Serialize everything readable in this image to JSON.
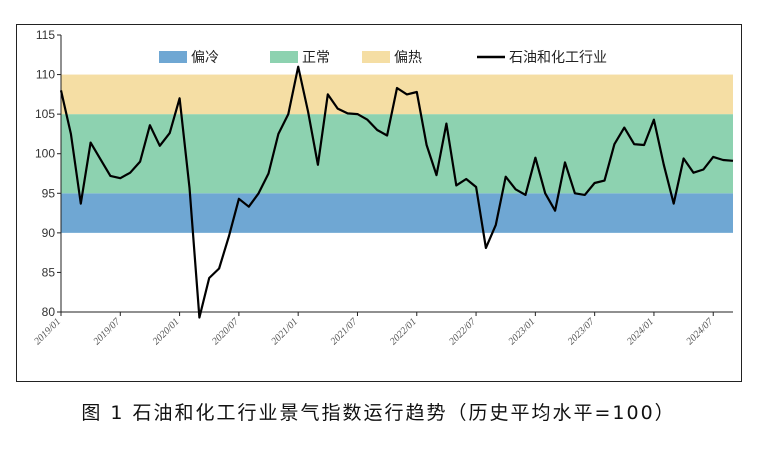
{
  "chart_data": {
    "type": "line",
    "ylim": [
      80,
      115
    ],
    "y_ticks": [
      80,
      85,
      90,
      95,
      100,
      105,
      110,
      115
    ],
    "x_ticks": [
      "2019/01",
      "2019/07",
      "2020/01",
      "2020/07",
      "2021/01",
      "2021/07",
      "2022/01",
      "2022/07",
      "2023/01",
      "2023/07",
      "2024/01",
      "2024/07"
    ],
    "bands": [
      {
        "name": "偏冷",
        "from": 90,
        "to": 95,
        "color": "#6fa7d3"
      },
      {
        "name": "正常",
        "from": 95,
        "to": 105,
        "color": "#8dd2b0"
      },
      {
        "name": "偏热",
        "from": 105,
        "to": 110,
        "color": "#f5dea4"
      }
    ],
    "series": [
      {
        "name": "石油和化工行业",
        "color": "#000000",
        "x": [
          "2019/01",
          "2019/02",
          "2019/03",
          "2019/04",
          "2019/05",
          "2019/06",
          "2019/07",
          "2019/08",
          "2019/09",
          "2019/10",
          "2019/11",
          "2019/12",
          "2020/01",
          "2020/02",
          "2020/03",
          "2020/04",
          "2020/05",
          "2020/06",
          "2020/07",
          "2020/08",
          "2020/09",
          "2020/10",
          "2020/11",
          "2020/12",
          "2021/01",
          "2021/02",
          "2021/03",
          "2021/04",
          "2021/05",
          "2021/06",
          "2021/07",
          "2021/08",
          "2021/09",
          "2021/10",
          "2021/11",
          "2021/12",
          "2022/01",
          "2022/02",
          "2022/03",
          "2022/04",
          "2022/05",
          "2022/06",
          "2022/07",
          "2022/08",
          "2022/09",
          "2022/10",
          "2022/11",
          "2022/12",
          "2023/01",
          "2023/02",
          "2023/03",
          "2023/04",
          "2023/05",
          "2023/06",
          "2023/07",
          "2023/08",
          "2023/09",
          "2023/10",
          "2023/11",
          "2023/12",
          "2024/01",
          "2024/02",
          "2024/03",
          "2024/04",
          "2024/05",
          "2024/06",
          "2024/07",
          "2024/08",
          "2024/09"
        ],
        "values": [
          108.0,
          102.5,
          93.7,
          101.4,
          99.3,
          97.2,
          96.9,
          97.6,
          99.0,
          103.6,
          101.0,
          102.6,
          107.0,
          95.7,
          79.3,
          84.3,
          85.5,
          89.6,
          94.3,
          93.3,
          95.0,
          97.5,
          102.5,
          105.0,
          111.0,
          105.3,
          98.6,
          107.5,
          105.7,
          105.1,
          105.0,
          104.3,
          103.0,
          102.3,
          108.3,
          107.5,
          107.8,
          101.1,
          97.3,
          103.8,
          96.0,
          96.8,
          95.8,
          88.1,
          91.0,
          97.1,
          95.5,
          94.8,
          99.5,
          95.0,
          92.8,
          98.9,
          95.0,
          94.8,
          96.3,
          96.6,
          101.2,
          103.3,
          101.2,
          101.1,
          104.3,
          98.6,
          93.7,
          99.4,
          97.6,
          98.0,
          99.6,
          99.2,
          99.1
        ]
      }
    ]
  },
  "legend": {
    "items": [
      {
        "label": "偏冷",
        "color": "#6fa7d3",
        "kind": "swatch"
      },
      {
        "label": "正常",
        "color": "#8dd2b0",
        "kind": "swatch"
      },
      {
        "label": "偏热",
        "color": "#f5dea4",
        "kind": "swatch"
      },
      {
        "label": "石油和化工行业",
        "color": "#000000",
        "kind": "line"
      }
    ]
  },
  "caption": "图 1 石油和化工行业景气指数运行趋势（历史平均水平=100）"
}
